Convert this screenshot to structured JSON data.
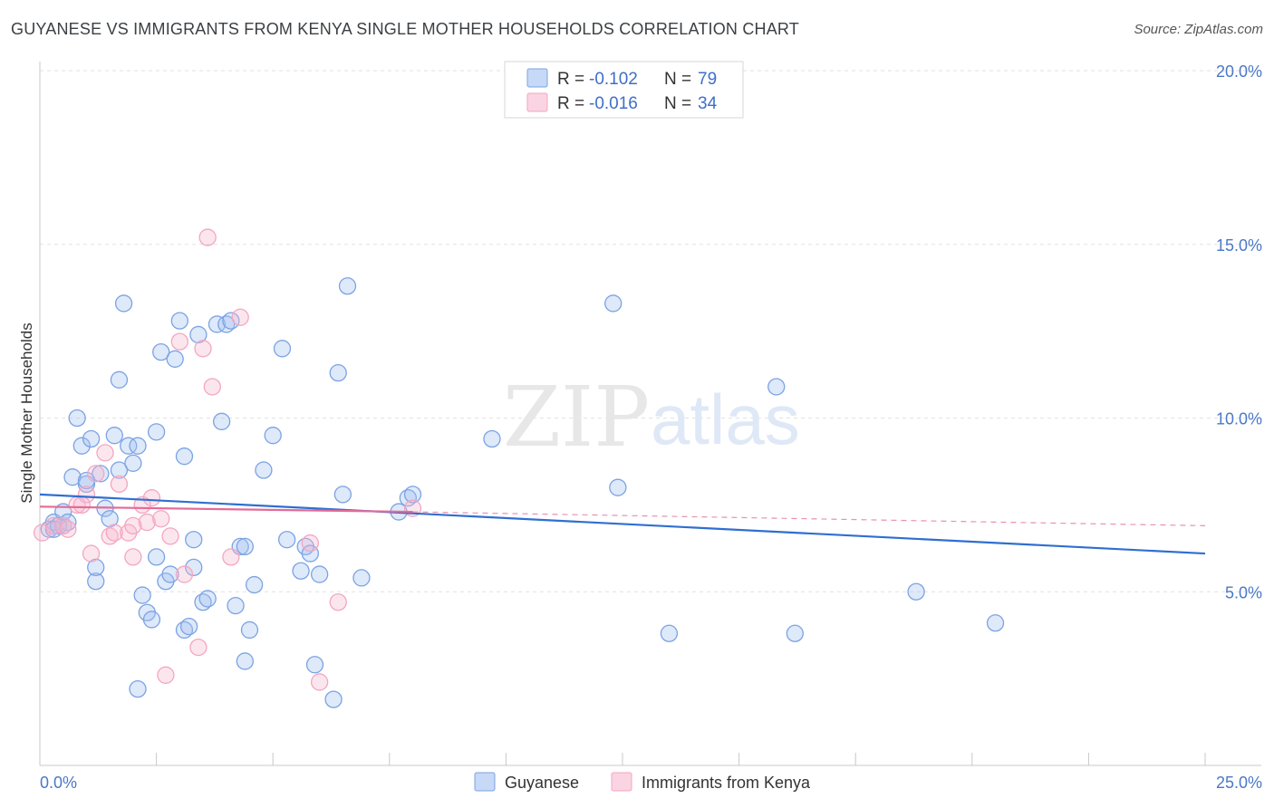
{
  "header": {
    "title": "GUYANESE VS IMMIGRANTS FROM KENYA SINGLE MOTHER HOUSEHOLDS CORRELATION CHART",
    "source": "Source: ZipAtlas.com"
  },
  "watermark": {
    "zip": "ZIP",
    "atlas": "atlas"
  },
  "legend": {
    "r_label": "R =",
    "n_label": "N =",
    "rows": [
      {
        "r": "-0.102",
        "n": "79"
      },
      {
        "r": "-0.016",
        "n": "34"
      }
    ]
  },
  "chart_data": {
    "type": "scatter",
    "title": "GUYANESE VS IMMIGRANTS FROM KENYA SINGLE MOTHER HOUSEHOLDS CORRELATION CHART",
    "ylabel": "Single Mother Households",
    "xlabel": "",
    "xlim": [
      0,
      25
    ],
    "ylim": [
      0,
      20
    ],
    "x_tick_labels": [
      "0.0%",
      "25.0%"
    ],
    "y_ticks": [
      5,
      10,
      15,
      20
    ],
    "y_tick_labels": [
      "5.0%",
      "10.0%",
      "15.0%",
      "20.0%"
    ],
    "grid": true,
    "legend_placement": "top-center",
    "series": [
      {
        "name": "Guyanese",
        "color": "#7ba3e3",
        "trend": {
          "x": [
            0,
            25
          ],
          "y": [
            7.8,
            6.1
          ]
        },
        "points": [
          [
            0.2,
            6.8
          ],
          [
            0.3,
            7.0
          ],
          [
            0.4,
            6.9
          ],
          [
            0.5,
            7.3
          ],
          [
            0.6,
            7.0
          ],
          [
            0.7,
            8.3
          ],
          [
            0.8,
            10.0
          ],
          [
            0.9,
            9.2
          ],
          [
            1.0,
            8.1
          ],
          [
            1.1,
            9.4
          ],
          [
            1.2,
            5.3
          ],
          [
            1.2,
            5.7
          ],
          [
            1.3,
            8.4
          ],
          [
            1.4,
            7.4
          ],
          [
            1.5,
            7.1
          ],
          [
            1.6,
            9.5
          ],
          [
            1.7,
            8.5
          ],
          [
            1.7,
            11.1
          ],
          [
            1.8,
            13.3
          ],
          [
            1.9,
            9.2
          ],
          [
            2.0,
            8.7
          ],
          [
            2.1,
            9.2
          ],
          [
            2.2,
            4.9
          ],
          [
            2.3,
            4.4
          ],
          [
            2.4,
            4.2
          ],
          [
            2.5,
            6.0
          ],
          [
            2.5,
            9.6
          ],
          [
            2.6,
            11.9
          ],
          [
            2.7,
            5.3
          ],
          [
            2.8,
            5.5
          ],
          [
            2.9,
            11.7
          ],
          [
            3.0,
            12.8
          ],
          [
            3.1,
            3.9
          ],
          [
            3.1,
            8.9
          ],
          [
            3.2,
            4.0
          ],
          [
            3.3,
            6.5
          ],
          [
            3.3,
            5.7
          ],
          [
            3.4,
            12.4
          ],
          [
            3.5,
            4.7
          ],
          [
            3.6,
            4.8
          ],
          [
            3.8,
            12.7
          ],
          [
            3.9,
            9.9
          ],
          [
            4.0,
            12.7
          ],
          [
            4.1,
            12.8
          ],
          [
            4.2,
            4.6
          ],
          [
            4.3,
            6.3
          ],
          [
            4.4,
            6.3
          ],
          [
            4.4,
            3.0
          ],
          [
            4.5,
            3.9
          ],
          [
            4.6,
            5.2
          ],
          [
            4.8,
            8.5
          ],
          [
            5.0,
            9.5
          ],
          [
            5.2,
            12.0
          ],
          [
            5.3,
            6.5
          ],
          [
            5.6,
            5.6
          ],
          [
            5.7,
            6.3
          ],
          [
            5.8,
            6.1
          ],
          [
            5.9,
            2.9
          ],
          [
            6.0,
            5.5
          ],
          [
            6.3,
            1.9
          ],
          [
            6.4,
            11.3
          ],
          [
            6.5,
            7.8
          ],
          [
            6.6,
            13.8
          ],
          [
            6.9,
            5.4
          ],
          [
            7.7,
            7.3
          ],
          [
            7.9,
            7.7
          ],
          [
            8.0,
            7.8
          ],
          [
            9.7,
            9.4
          ],
          [
            12.3,
            13.3
          ],
          [
            12.4,
            8.0
          ],
          [
            13.5,
            3.8
          ],
          [
            15.8,
            10.9
          ],
          [
            16.2,
            3.8
          ],
          [
            18.8,
            5.0
          ],
          [
            20.5,
            4.1
          ],
          [
            2.1,
            2.2
          ],
          [
            0.3,
            6.8
          ],
          [
            0.5,
            6.9
          ],
          [
            1.0,
            8.2
          ]
        ]
      },
      {
        "name": "Immigrants from Kenya",
        "color": "#f4a6c0",
        "trend": {
          "x": [
            0,
            8
          ],
          "y": [
            7.45,
            7.3
          ]
        },
        "trend_dashed": {
          "x": [
            8,
            25
          ],
          "y": [
            7.3,
            6.9
          ]
        },
        "points": [
          [
            0.05,
            6.7
          ],
          [
            0.3,
            6.9
          ],
          [
            0.5,
            6.9
          ],
          [
            0.6,
            6.8
          ],
          [
            0.8,
            7.5
          ],
          [
            1.0,
            7.8
          ],
          [
            1.1,
            6.1
          ],
          [
            1.2,
            8.4
          ],
          [
            1.4,
            9.0
          ],
          [
            1.5,
            6.6
          ],
          [
            1.6,
            6.7
          ],
          [
            1.7,
            8.1
          ],
          [
            1.9,
            6.7
          ],
          [
            2.0,
            6.0
          ],
          [
            2.2,
            7.5
          ],
          [
            2.3,
            7.0
          ],
          [
            2.4,
            7.7
          ],
          [
            2.6,
            7.1
          ],
          [
            2.7,
            2.6
          ],
          [
            2.8,
            6.6
          ],
          [
            3.0,
            12.2
          ],
          [
            3.1,
            5.5
          ],
          [
            3.4,
            3.4
          ],
          [
            3.5,
            12.0
          ],
          [
            3.6,
            15.2
          ],
          [
            3.7,
            10.9
          ],
          [
            4.1,
            6.0
          ],
          [
            4.3,
            12.9
          ],
          [
            5.8,
            6.4
          ],
          [
            6.0,
            2.4
          ],
          [
            6.4,
            4.7
          ],
          [
            8.0,
            7.4
          ],
          [
            0.9,
            7.5
          ],
          [
            2.0,
            6.9
          ]
        ]
      }
    ]
  }
}
